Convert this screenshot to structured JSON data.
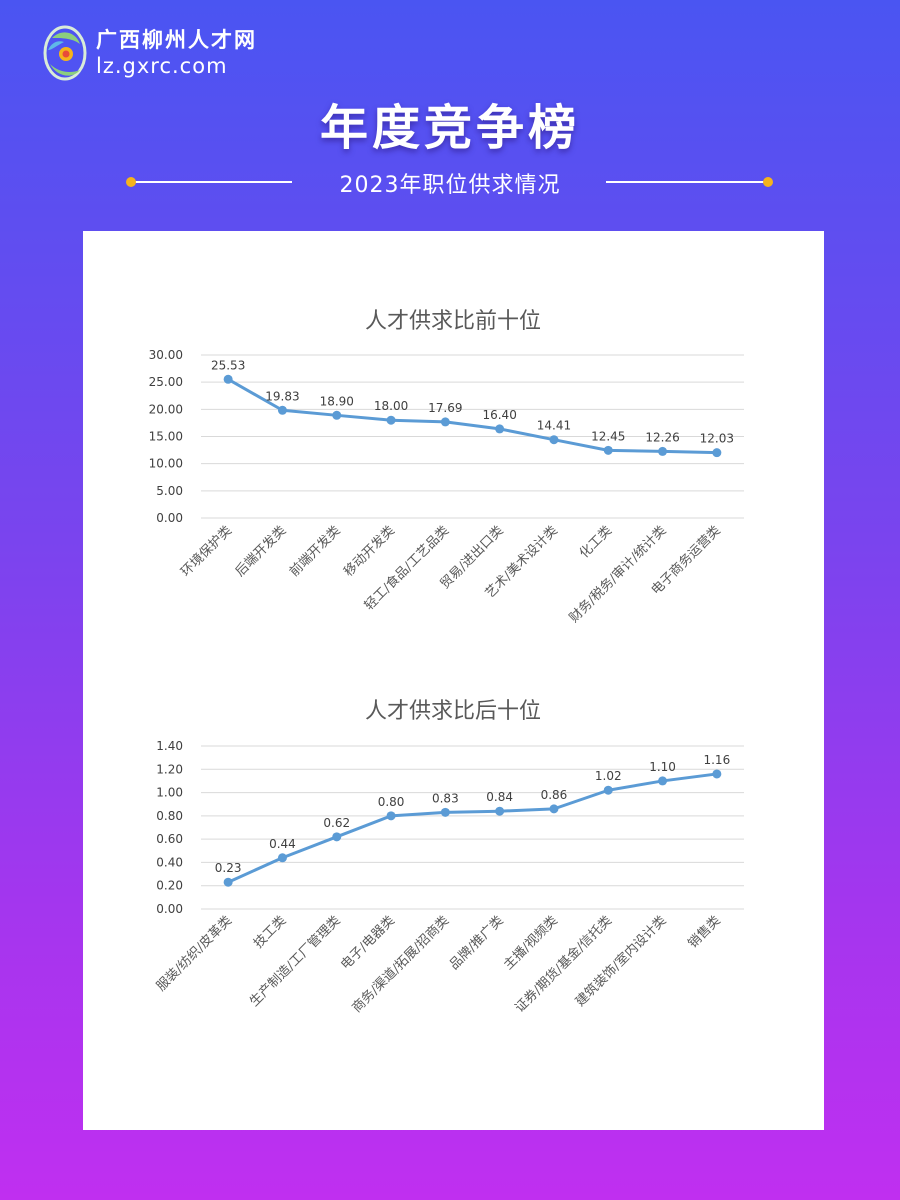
{
  "header": {
    "logo_cn": "广西柳州人才网",
    "logo_url": "lz.gxrc.com",
    "title": "年度竞争榜",
    "subtitle": "2023年职位供求情况"
  },
  "colors": {
    "series": "#5b9bd5",
    "accent_dot": "#f5b31c"
  },
  "chart_data": [
    {
      "type": "line",
      "title": "人才供求比前十位",
      "categories": [
        "环境保护类",
        "后端开发类",
        "前端开发类",
        "移动开发类",
        "轻工/食品/工艺品类",
        "贸易/进出口类",
        "艺术/美术设计类",
        "化工类",
        "财务/税务/审计/统计类",
        "电子商务运营类"
      ],
      "values": [
        25.53,
        19.83,
        18.9,
        18.0,
        17.69,
        16.4,
        14.41,
        12.45,
        12.26,
        12.03
      ],
      "value_labels": [
        "25.53",
        "19.83",
        "18.90",
        "18.00",
        "17.69",
        "16.40",
        "14.41",
        "12.45",
        "12.26",
        "12.03"
      ],
      "yticks": [
        "0.00",
        "5.00",
        "10.00",
        "15.00",
        "20.00",
        "25.00",
        "30.00"
      ],
      "ylim": [
        0,
        30
      ],
      "grid": true
    },
    {
      "type": "line",
      "title": "人才供求比后十位",
      "categories": [
        "服装/纺织/皮革类",
        "技工类",
        "生产制造/工厂管理类",
        "电子/电器类",
        "商务/渠道/拓展/招商类",
        "品牌/推广类",
        "主播/视频类",
        "证券/期货/基金/信托类",
        "建筑装饰/室内设计类",
        "销售类"
      ],
      "values": [
        0.23,
        0.44,
        0.62,
        0.8,
        0.83,
        0.84,
        0.86,
        1.02,
        1.1,
        1.16
      ],
      "value_labels": [
        "0.23",
        "0.44",
        "0.62",
        "0.80",
        "0.83",
        "0.84",
        "0.86",
        "1.02",
        "1.10",
        "1.16"
      ],
      "yticks": [
        "0.00",
        "0.20",
        "0.40",
        "0.60",
        "0.80",
        "1.00",
        "1.20",
        "1.40"
      ],
      "ylim": [
        0,
        1.4
      ],
      "grid": true
    }
  ]
}
